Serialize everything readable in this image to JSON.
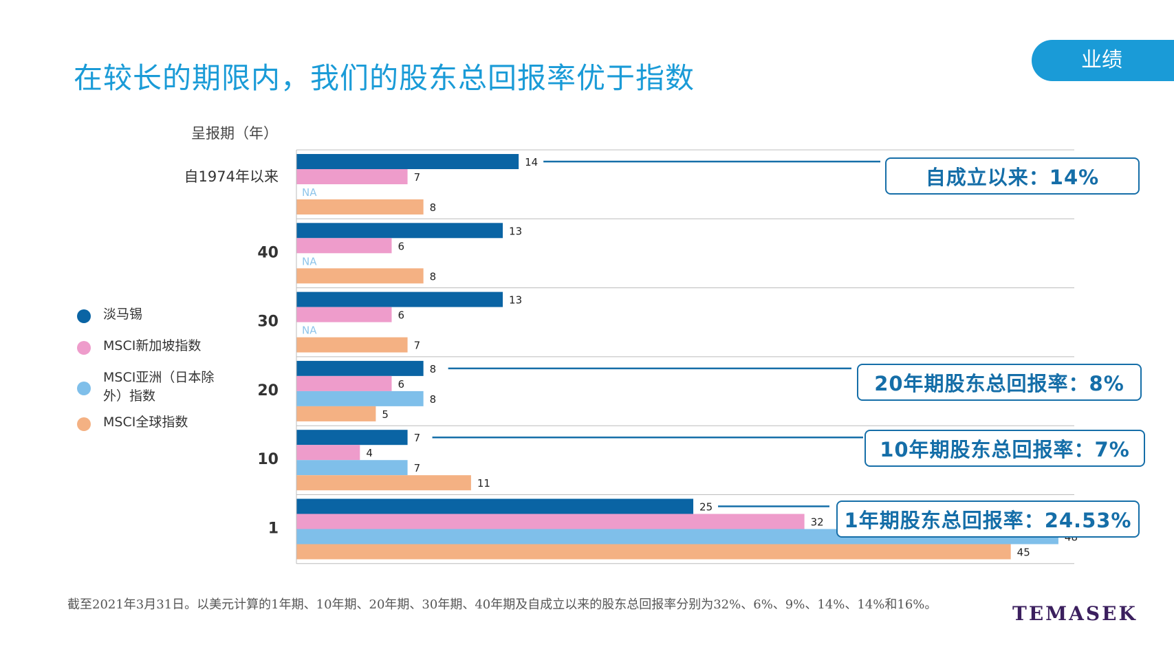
{
  "page": {
    "title": "在较长的期限内，我们的股东总回报率优于指数",
    "section_tab": "业绩",
    "footnote": "截至2021年3月31日。以美元计算的1年期、10年期、20年期、30年期、40年期及自成立以来的股东总回报率分别为32%、6%、9%、14%、14%和16%。",
    "brand": "TEMASEK"
  },
  "chart_data": {
    "type": "bar",
    "orientation": "horizontal",
    "ylabel": "呈报期（年）",
    "categories": [
      "自1974年以来",
      "40",
      "30",
      "20",
      "10",
      "1"
    ],
    "xlim": [
      0,
      49
    ],
    "grid": false,
    "legend_position": "left",
    "na_label": "NA",
    "series": [
      {
        "name": "淡马锡",
        "color": "#0a64a4",
        "values": [
          14,
          13,
          13,
          8,
          7,
          25
        ]
      },
      {
        "name": "MSCI新加坡指数",
        "color": "#ee9ccb",
        "values": [
          7,
          6,
          6,
          6,
          4,
          32
        ]
      },
      {
        "name": "MSCI亚洲（日本除外）指数",
        "color": "#7fbfea",
        "values": [
          null,
          null,
          null,
          8,
          7,
          48
        ]
      },
      {
        "name": "MSCI全球指数",
        "color": "#f4b183",
        "values": [
          8,
          8,
          7,
          5,
          11,
          45
        ]
      }
    ],
    "annotations": [
      {
        "category_index": 0,
        "text": "自成立以来：14%"
      },
      {
        "category_index": 3,
        "text": "20年期股东总回报率：8%"
      },
      {
        "category_index": 4,
        "text": "10年期股东总回报率：7%"
      },
      {
        "category_index": 5,
        "text": "1年期股东总回报率：24.53%"
      }
    ]
  }
}
